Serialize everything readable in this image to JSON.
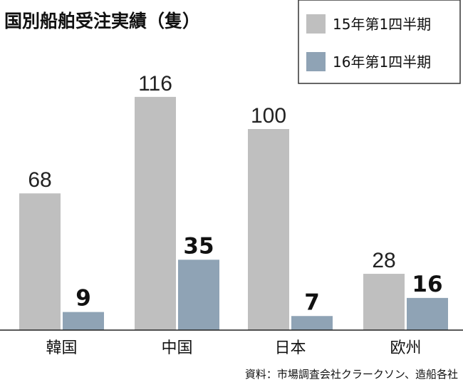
{
  "chart_data": {
    "type": "bar",
    "title": "国別船舶受注実績（隻）",
    "categories": [
      "韓国",
      "中国",
      "日本",
      "欧州"
    ],
    "series": [
      {
        "name": "15年第1四半期",
        "values": [
          68,
          116,
          100,
          28
        ],
        "color": "#bfbfbf"
      },
      {
        "name": "16年第1四半期",
        "values": [
          9,
          35,
          7,
          16
        ],
        "color": "#8fa3b5"
      }
    ],
    "ylim": [
      0,
      120
    ],
    "grid": false,
    "legend_position": "top-right",
    "source": "資料：市場調査会社クラークソン、造船各社"
  }
}
